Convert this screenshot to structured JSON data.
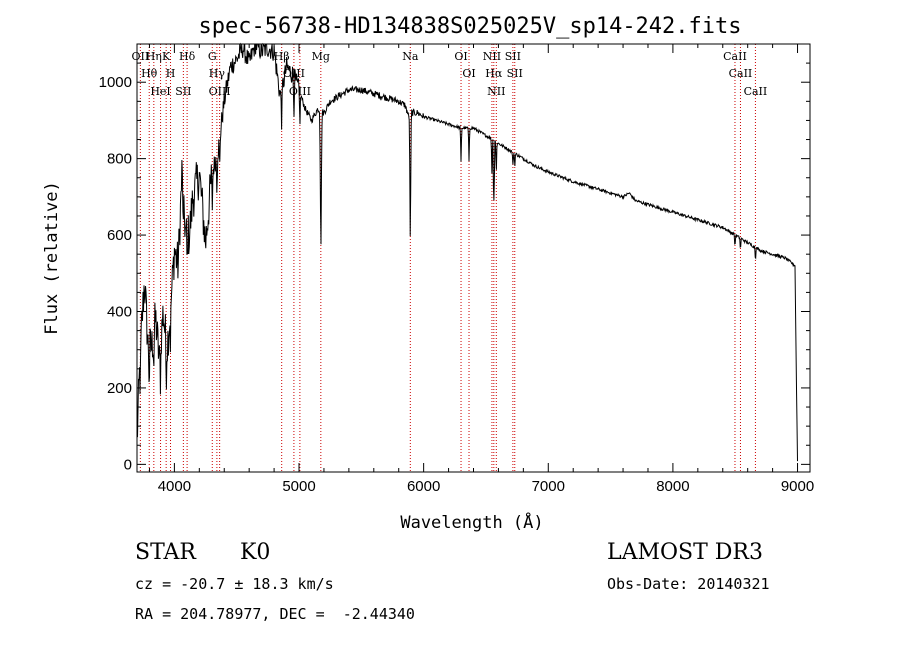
{
  "chart_data": {
    "type": "line",
    "title": "spec-56738-HD134838S025025V_sp14-242.fits",
    "xlabel": "Wavelength (Å)",
    "ylabel": "Flux (relative)",
    "xlim": [
      3700,
      9100
    ],
    "ylim": [
      -20,
      1100
    ],
    "grid": false,
    "x_ticks": [
      4000,
      5000,
      6000,
      7000,
      8000,
      9000
    ],
    "x_tick_labels": [
      "4000",
      "5000",
      "6000",
      "7000",
      "8000",
      "9000"
    ],
    "y_ticks": [
      0,
      200,
      400,
      600,
      800,
      1000
    ],
    "y_tick_labels": [
      "0",
      "200",
      "400",
      "600",
      "800",
      "1000"
    ],
    "series": [
      {
        "name": "Flux",
        "x": [
          3700,
          3730,
          3760,
          3790,
          3820,
          3850,
          3880,
          3910,
          3940,
          3970,
          4000,
          4030,
          4060,
          4090,
          4120,
          4150,
          4200,
          4250,
          4300,
          4350,
          4400,
          4450,
          4500,
          4550,
          4600,
          4650,
          4700,
          4750,
          4800,
          4850,
          4900,
          4950,
          5000,
          5050,
          5100,
          5150,
          5200,
          5250,
          5300,
          5400,
          5500,
          5600,
          5700,
          5800,
          5850,
          5890,
          5900,
          5950,
          6000,
          6100,
          6200,
          6300,
          6400,
          6500,
          6563,
          6600,
          6700,
          6800,
          6900,
          7000,
          7200,
          7400,
          7600,
          7650,
          7700,
          7800,
          8000,
          8200,
          8400,
          8500,
          8600,
          8700,
          8800,
          8900,
          8980,
          8990,
          9000
        ],
        "values": [
          60,
          320,
          480,
          300,
          310,
          380,
          270,
          400,
          300,
          410,
          560,
          520,
          760,
          600,
          600,
          700,
          760,
          580,
          760,
          820,
          950,
          1040,
          1060,
          1090,
          1050,
          1100,
          1080,
          1090,
          1080,
          960,
          1040,
          1020,
          980,
          930,
          900,
          930,
          920,
          950,
          960,
          980,
          980,
          970,
          960,
          950,
          940,
          900,
          920,
          920,
          910,
          900,
          890,
          880,
          880,
          860,
          850,
          840,
          820,
          800,
          780,
          765,
          740,
          720,
          700,
          710,
          690,
          680,
          660,
          640,
          620,
          600,
          580,
          560,
          550,
          540,
          520,
          250,
          10
        ]
      }
    ],
    "absorption_lines": [
      {
        "name": "Hθ",
        "wavelength": 3798
      },
      {
        "name": "OII",
        "wavelength": 3727
      },
      {
        "name": "Hη",
        "wavelength": 3835
      },
      {
        "name": "HeI",
        "wavelength": 3889
      },
      {
        "name": "K",
        "wavelength": 3934
      },
      {
        "name": "H",
        "wavelength": 3969
      },
      {
        "name": "SII",
        "wavelength": 4072
      },
      {
        "name": "Hδ",
        "wavelength": 4102
      },
      {
        "name": "OIII",
        "wavelength": 4363
      },
      {
        "name": "Hγ",
        "wavelength": 4341
      },
      {
        "name": "G",
        "wavelength": 4304
      },
      {
        "name": "Hβ",
        "wavelength": 4861
      },
      {
        "name": "OIII",
        "wavelength": 4959
      },
      {
        "name": "OIII",
        "wavelength": 5007
      },
      {
        "name": "Mg",
        "wavelength": 5175
      },
      {
        "name": "Na",
        "wavelength": 5893
      },
      {
        "name": "OI",
        "wavelength": 6300
      },
      {
        "name": "OI",
        "wavelength": 6364
      },
      {
        "name": "NII",
        "wavelength": 6548
      },
      {
        "name": "Hα",
        "wavelength": 6563
      },
      {
        "name": "NII",
        "wavelength": 6583
      },
      {
        "name": "SII",
        "wavelength": 6716
      },
      {
        "name": "SII",
        "wavelength": 6731
      },
      {
        "name": "CaII",
        "wavelength": 8498
      },
      {
        "name": "CaII",
        "wavelength": 8542
      },
      {
        "name": "CaII",
        "wavelength": 8662
      }
    ],
    "line_color": "#000000",
    "marker_color": "#cc0000"
  },
  "info": {
    "object_type": "STAR",
    "spectral_class": "K0",
    "survey": "LAMOST DR3",
    "redshift": "cz = -20.7 ± 18.3 km/s",
    "obs_date": "Obs-Date: 20140321",
    "coords": "RA = 204.78977, DEC =  -2.44340"
  }
}
